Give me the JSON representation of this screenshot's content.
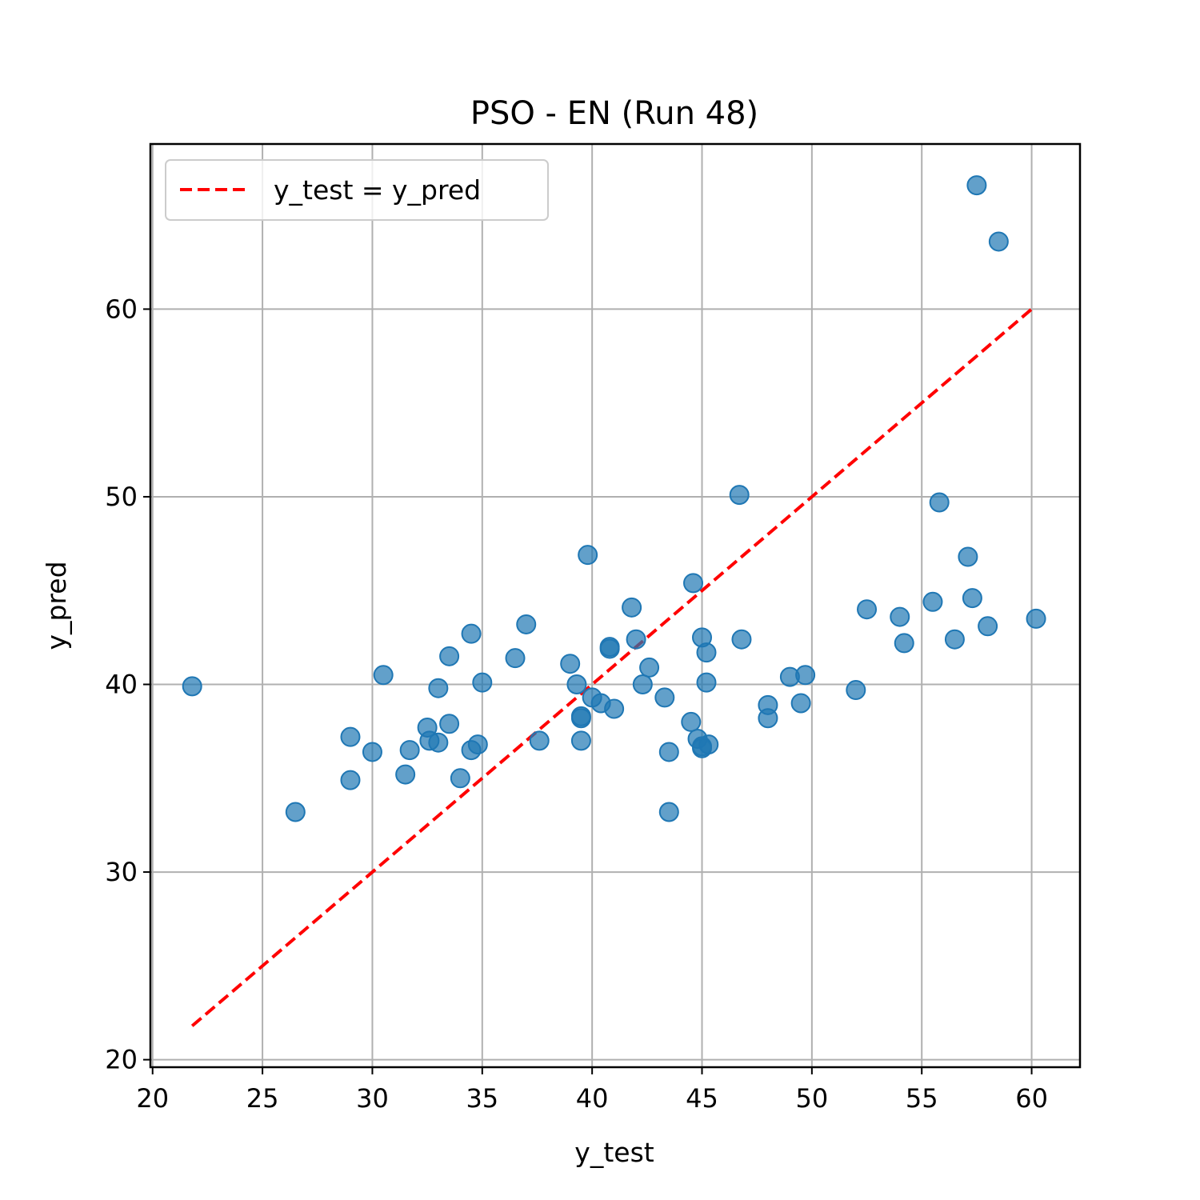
{
  "chart_data": {
    "type": "scatter",
    "title": "PSO - EN (Run 48)",
    "xlabel": "y_test",
    "ylabel": "y_pred",
    "xlim": [
      19.9,
      62.2
    ],
    "ylim": [
      19.6,
      68.8
    ],
    "xticks": [
      20,
      25,
      30,
      35,
      40,
      45,
      50,
      55,
      60
    ],
    "yticks": [
      20,
      30,
      40,
      50,
      60
    ],
    "grid": true,
    "legend": {
      "placement": "top-left",
      "entries": [
        {
          "label": "y_test = y_pred",
          "style": "dashed",
          "color": "#ff0000"
        }
      ]
    },
    "reference_line": {
      "label": "y_test = y_pred",
      "from": [
        21.8,
        21.8
      ],
      "to": [
        60.0,
        60.0
      ],
      "color": "#ff0000"
    },
    "point_color": "#1f77b4",
    "points": [
      [
        21.8,
        39.9
      ],
      [
        26.5,
        33.2
      ],
      [
        29.0,
        37.2
      ],
      [
        29.0,
        34.9
      ],
      [
        30.0,
        36.4
      ],
      [
        30.5,
        40.5
      ],
      [
        31.5,
        35.2
      ],
      [
        31.7,
        36.5
      ],
      [
        32.5,
        37.7
      ],
      [
        32.6,
        37.0
      ],
      [
        33.0,
        36.9
      ],
      [
        33.0,
        39.8
      ],
      [
        33.5,
        41.5
      ],
      [
        33.5,
        37.9
      ],
      [
        34.0,
        35.0
      ],
      [
        34.5,
        42.7
      ],
      [
        34.5,
        36.5
      ],
      [
        34.8,
        36.8
      ],
      [
        35.0,
        40.1
      ],
      [
        36.5,
        41.4
      ],
      [
        37.0,
        43.2
      ],
      [
        37.6,
        37.0
      ],
      [
        39.0,
        41.1
      ],
      [
        39.3,
        40.0
      ],
      [
        39.5,
        38.3
      ],
      [
        39.5,
        38.2
      ],
      [
        39.5,
        37.0
      ],
      [
        39.8,
        46.9
      ],
      [
        40.0,
        39.3
      ],
      [
        40.4,
        39.0
      ],
      [
        40.8,
        41.9
      ],
      [
        40.8,
        42.0
      ],
      [
        41.0,
        38.7
      ],
      [
        41.8,
        44.1
      ],
      [
        42.0,
        42.4
      ],
      [
        42.3,
        40.0
      ],
      [
        42.6,
        40.9
      ],
      [
        43.3,
        39.3
      ],
      [
        43.5,
        36.4
      ],
      [
        43.5,
        33.2
      ],
      [
        44.5,
        38.0
      ],
      [
        44.6,
        45.4
      ],
      [
        44.8,
        37.1
      ],
      [
        45.0,
        36.7
      ],
      [
        45.0,
        42.5
      ],
      [
        45.0,
        36.6
      ],
      [
        45.2,
        41.7
      ],
      [
        45.2,
        40.1
      ],
      [
        45.3,
        36.8
      ],
      [
        46.7,
        50.1
      ],
      [
        46.8,
        42.4
      ],
      [
        48.0,
        38.9
      ],
      [
        48.0,
        38.2
      ],
      [
        49.0,
        40.4
      ],
      [
        49.5,
        39.0
      ],
      [
        49.7,
        40.5
      ],
      [
        52.0,
        39.7
      ],
      [
        52.5,
        44.0
      ],
      [
        54.0,
        43.6
      ],
      [
        54.2,
        42.2
      ],
      [
        55.5,
        44.4
      ],
      [
        55.8,
        49.7
      ],
      [
        56.5,
        42.4
      ],
      [
        57.1,
        46.8
      ],
      [
        57.3,
        44.6
      ],
      [
        57.5,
        66.6
      ],
      [
        58.0,
        43.1
      ],
      [
        58.5,
        63.6
      ],
      [
        60.2,
        43.5
      ]
    ]
  }
}
